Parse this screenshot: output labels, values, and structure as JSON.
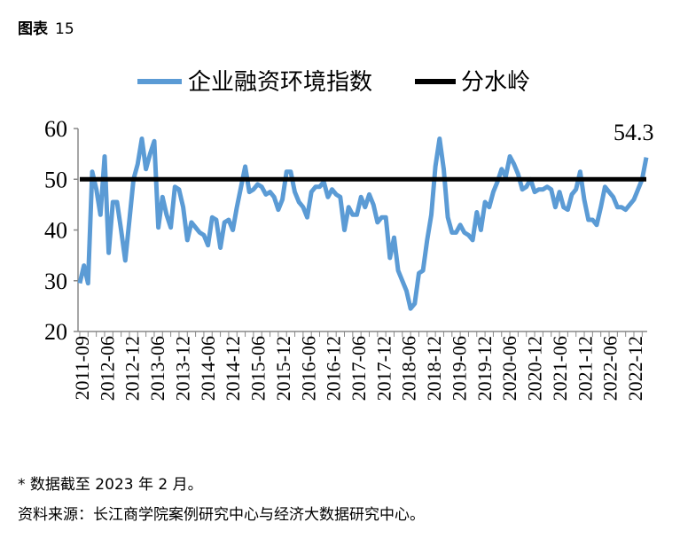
{
  "figure": {
    "label": "图表",
    "number": "15"
  },
  "notes": [
    "*  数据截至 2023 年 2 月。",
    "资料来源：长江商学院案例研究中心与经济大数据研究中心。"
  ],
  "chart_data": {
    "type": "line",
    "title": "",
    "xlabel": "",
    "ylabel": "",
    "ylim": [
      20,
      60
    ],
    "yticks": [
      20,
      30,
      40,
      50,
      60
    ],
    "grid": false,
    "legend_placement": "top",
    "x_start": "2011-09",
    "x_end": "2023-02",
    "xtick_labels": [
      "2011-09",
      "2012-06",
      "2012-12",
      "2013-06",
      "2013-12",
      "2014-06",
      "2014-12",
      "2015-06",
      "2015-12",
      "2016-06",
      "2016-12",
      "2017-06",
      "2017-12",
      "2018-06",
      "2018-12",
      "2019-06",
      "2019-12",
      "2020-06",
      "2020-12",
      "2021-06",
      "2021-12",
      "2022-06",
      "2022-12"
    ],
    "annotation": "54.3",
    "series": [
      {
        "name": "企业融资环境指数",
        "color": "#5B9BD5",
        "values": [
          29.5,
          33,
          29.5,
          51.5,
          48,
          43,
          54.5,
          35.5,
          45.5,
          45.5,
          40,
          34,
          42,
          50,
          53,
          58,
          52,
          55,
          57.5,
          40.5,
          46.5,
          43,
          40.5,
          48.5,
          48,
          44.5,
          38,
          41.5,
          40.5,
          39.5,
          39,
          37,
          42.5,
          42,
          36.5,
          41.5,
          42,
          40,
          44.5,
          48.5,
          52.5,
          47.5,
          48,
          49,
          48.5,
          47,
          47.5,
          46.5,
          44,
          46,
          51.5,
          51.5,
          47.5,
          45.5,
          44.5,
          42.5,
          47.5,
          48.5,
          48.5,
          49.5,
          46.5,
          48,
          47,
          46.5,
          40,
          44.5,
          43,
          43,
          46.5,
          44.5,
          47,
          45,
          41.5,
          42.5,
          42.5,
          34.5,
          38.5,
          32,
          30,
          28,
          24.5,
          25.5,
          31.5,
          32,
          38,
          43,
          52.5,
          58,
          52,
          42.5,
          39.5,
          39.5,
          41,
          39.5,
          39,
          38,
          43.5,
          40,
          45.5,
          44.5,
          47.5,
          49.5,
          52,
          50.5,
          54.5,
          53,
          51,
          48,
          48.5,
          50,
          47.5,
          48,
          48,
          48.5,
          48,
          44.5,
          47.5,
          44.5,
          44,
          47,
          48,
          51.5,
          46,
          42,
          42,
          41,
          44.5,
          48.5,
          47.5,
          46.5,
          44.5,
          44.5,
          44,
          45,
          46,
          48,
          50,
          54.3
        ]
      },
      {
        "name": "分水岭",
        "color": "#000000",
        "constant": 50
      }
    ]
  }
}
